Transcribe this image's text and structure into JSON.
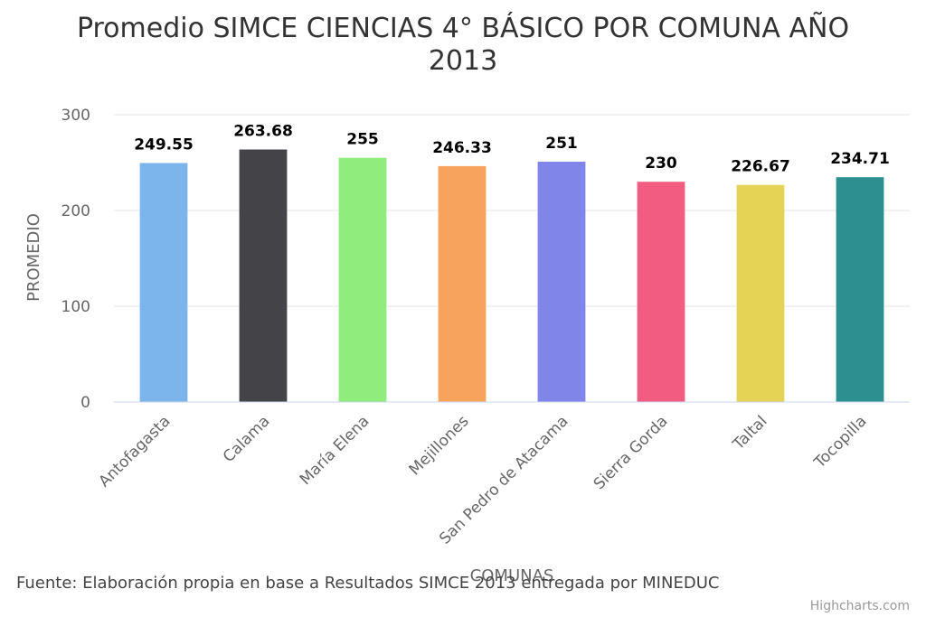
{
  "chart_data": {
    "type": "bar",
    "title": "Promedio SIMCE CIENCIAS 4° BÁSICO POR COMUNA AÑO 2013",
    "title_lines": [
      "Promedio SIMCE CIENCIAS 4° BÁSICO POR COMUNA AÑO",
      "2013"
    ],
    "xlabel": "COMUNAS",
    "ylabel": "PROMEDIO",
    "categories": [
      "Antofagasta",
      "Calama",
      "María Elena",
      "Mejillones",
      "San Pedro de Atacama",
      "Sierra Gorda",
      "Taltal",
      "Tocopilla"
    ],
    "values": [
      249.55,
      263.68,
      255,
      246.33,
      251,
      230,
      226.67,
      234.71
    ],
    "data_labels": [
      "249.55",
      "263.68",
      "255",
      "246.33",
      "251",
      "230",
      "226.67",
      "234.71"
    ],
    "colors": [
      "#7cb5ec",
      "#434348",
      "#90ed7d",
      "#f7a35c",
      "#8085e9",
      "#f15c80",
      "#e4d354",
      "#2b908f"
    ],
    "ylim": [
      0,
      300
    ],
    "yticks": [
      0,
      100,
      200,
      300
    ],
    "grid": true,
    "legend": "none"
  },
  "source_text": "Fuente: Elaboración propia en base a Resultados SIMCE 2013 entregada por MINEDUC",
  "credits": "Highcharts.com"
}
